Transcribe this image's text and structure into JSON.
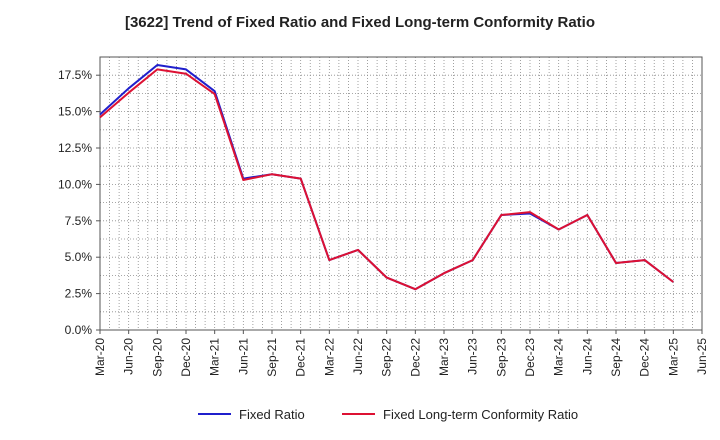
{
  "chart_data": {
    "type": "line",
    "title": "[3622]  Trend of Fixed Ratio and Fixed Long-term Conformity Ratio",
    "xlabel": "",
    "ylabel": "",
    "ylim": [
      0,
      18.75
    ],
    "y_ticks": [
      "0.0%",
      "2.5%",
      "5.0%",
      "7.5%",
      "10.0%",
      "12.5%",
      "15.0%",
      "17.5%"
    ],
    "y_tick_values": [
      0,
      2.5,
      5,
      7.5,
      10,
      12.5,
      15,
      17.5
    ],
    "x_ticks": [
      "Mar-20",
      "Jun-20",
      "Sep-20",
      "Dec-20",
      "Mar-21",
      "Jun-21",
      "Sep-21",
      "Dec-21",
      "Mar-22",
      "Jun-22",
      "Sep-22",
      "Dec-22",
      "Mar-23",
      "Jun-23",
      "Sep-23",
      "Dec-23",
      "Mar-24",
      "Jun-24",
      "Sep-24",
      "Dec-24",
      "Mar-25",
      "Jun-25"
    ],
    "categories": [
      "Mar-20",
      "Jun-20",
      "Sep-20",
      "Dec-20",
      "Mar-21",
      "Jun-21",
      "Sep-21",
      "Dec-21",
      "Mar-22",
      "Jun-22",
      "Sep-22",
      "Dec-22",
      "Mar-23",
      "Jun-23",
      "Sep-23",
      "Dec-23",
      "Mar-24",
      "Jun-24",
      "Sep-24",
      "Dec-24",
      "Mar-25"
    ],
    "grid": true,
    "legend_position": "bottom",
    "series": [
      {
        "name": "Fixed Ratio",
        "color": "#1f1fcc",
        "values": [
          14.8,
          16.6,
          18.2,
          17.9,
          16.4,
          10.4,
          10.7,
          10.4,
          4.8,
          5.5,
          3.6,
          2.8,
          3.9,
          4.8,
          7.9,
          8.0,
          6.9,
          7.9,
          4.6,
          4.8,
          3.3
        ]
      },
      {
        "name": "Fixed Long-term Conformity Ratio",
        "color": "#dd1133",
        "values": [
          14.6,
          16.3,
          17.9,
          17.6,
          16.2,
          10.3,
          10.7,
          10.4,
          4.8,
          5.5,
          3.6,
          2.8,
          3.9,
          4.8,
          7.9,
          8.1,
          6.9,
          7.9,
          4.6,
          4.8,
          3.3
        ]
      }
    ]
  }
}
